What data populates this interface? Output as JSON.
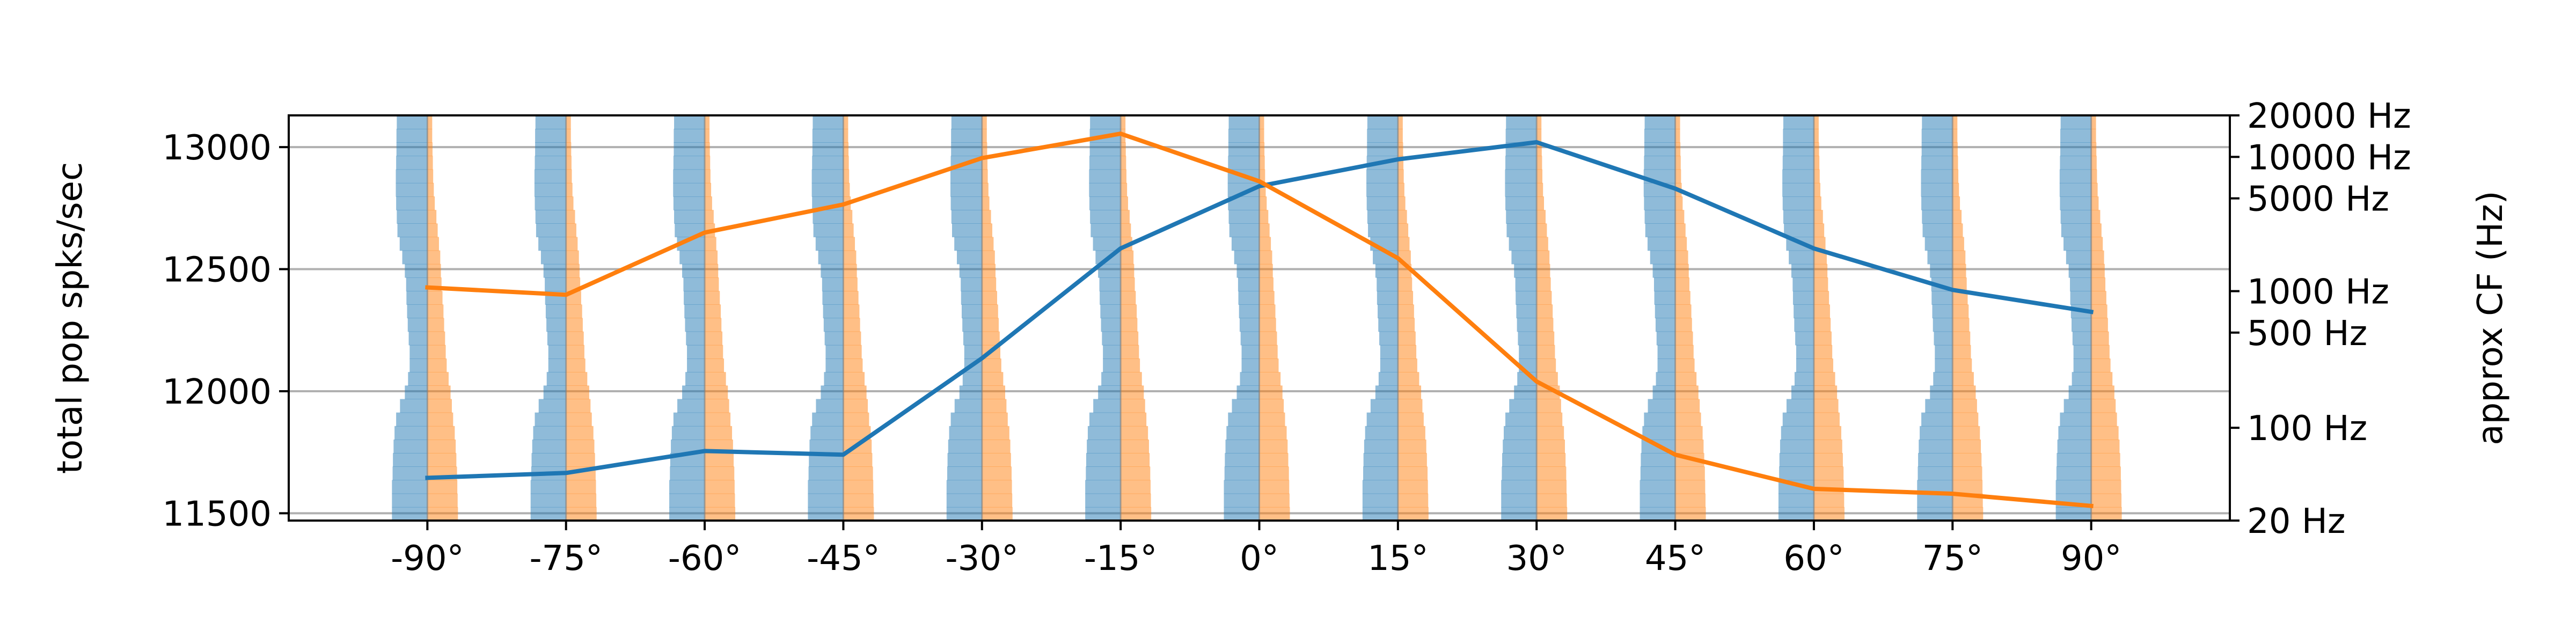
{
  "chart_data": {
    "type": "line",
    "x_categories": [
      "-90°",
      "-75°",
      "-60°",
      "-45°",
      "-30°",
      "-15°",
      "0°",
      "15°",
      "30°",
      "45°",
      "60°",
      "75°",
      "90°"
    ],
    "x_values": [
      -90,
      -75,
      -60,
      -45,
      -30,
      -15,
      0,
      15,
      30,
      45,
      60,
      75,
      90
    ],
    "xlim": [
      -105,
      105
    ],
    "ylabel": "total pop spks/sec",
    "ylim": [
      11470,
      13130
    ],
    "yticks": [
      11500,
      12000,
      12500,
      13000
    ],
    "ytick_labels": [
      "11500",
      "12000",
      "12500",
      "13000"
    ],
    "y2label": "approx CF (Hz)",
    "y2_ticks": [
      {
        "label": "20000 Hz",
        "value": 13130
      },
      {
        "label": "10000 Hz",
        "value": 12960
      },
      {
        "label": "5000 Hz",
        "value": 12790
      },
      {
        "label": "1000 Hz",
        "value": 12410
      },
      {
        "label": "500 Hz",
        "value": 12240
      },
      {
        "label": "100 Hz",
        "value": 11850
      },
      {
        "label": "20 Hz",
        "value": 11470
      }
    ],
    "grid": "horizontal",
    "series": [
      {
        "color": "#1f77b4",
        "values": [
          11645,
          11665,
          11755,
          11740,
          12135,
          12585,
          12840,
          12950,
          13020,
          12830,
          12585,
          12415,
          12325
        ]
      },
      {
        "color": "#ff7f0e",
        "values": [
          12425,
          12395,
          12650,
          12765,
          12955,
          13055,
          12860,
          12545,
          12040,
          11740,
          11600,
          11580,
          11530
        ]
      }
    ],
    "spectra": {
      "description_free": true,
      "left_color": "#1f77b4",
      "right_color": "#ff7f0e",
      "alpha": 0.5,
      "left_profiles": [
        [
          0.95,
          0.96,
          0.96,
          0.97,
          0.98,
          0.98,
          0.97,
          0.95,
          0.93,
          0.86,
          0.78,
          0.7,
          0.66,
          0.65,
          0.63,
          0.61,
          0.58,
          0.55,
          0.55,
          0.6,
          0.7,
          0.85,
          0.97,
          1.02,
          1.05,
          1.07,
          1.08,
          1.1,
          1.1,
          1.1
        ],
        [
          0.95,
          0.96,
          0.96,
          0.97,
          0.98,
          0.98,
          0.97,
          0.95,
          0.93,
          0.86,
          0.78,
          0.7,
          0.66,
          0.65,
          0.63,
          0.61,
          0.58,
          0.55,
          0.55,
          0.6,
          0.7,
          0.85,
          0.97,
          1.02,
          1.05,
          1.07,
          1.08,
          1.1,
          1.1,
          1.1
        ],
        [
          0.95,
          0.96,
          0.96,
          0.97,
          0.98,
          0.98,
          0.97,
          0.95,
          0.93,
          0.86,
          0.78,
          0.7,
          0.66,
          0.65,
          0.63,
          0.61,
          0.58,
          0.55,
          0.55,
          0.6,
          0.7,
          0.85,
          0.97,
          1.02,
          1.05,
          1.07,
          1.08,
          1.1,
          1.1,
          1.1
        ],
        [
          0.95,
          0.96,
          0.96,
          0.97,
          0.98,
          0.98,
          0.97,
          0.95,
          0.93,
          0.86,
          0.78,
          0.7,
          0.66,
          0.65,
          0.63,
          0.61,
          0.58,
          0.55,
          0.55,
          0.6,
          0.7,
          0.85,
          0.97,
          1.02,
          1.05,
          1.07,
          1.08,
          1.1,
          1.1,
          1.1
        ],
        [
          0.95,
          0.96,
          0.96,
          0.97,
          0.98,
          0.98,
          0.97,
          0.95,
          0.93,
          0.86,
          0.78,
          0.7,
          0.66,
          0.65,
          0.63,
          0.61,
          0.58,
          0.55,
          0.55,
          0.6,
          0.7,
          0.85,
          0.97,
          1.02,
          1.05,
          1.07,
          1.08,
          1.1,
          1.1,
          1.1
        ],
        [
          0.95,
          0.96,
          0.96,
          0.97,
          0.98,
          0.98,
          0.97,
          0.95,
          0.93,
          0.86,
          0.78,
          0.7,
          0.66,
          0.65,
          0.63,
          0.61,
          0.58,
          0.55,
          0.55,
          0.6,
          0.7,
          0.85,
          0.97,
          1.02,
          1.05,
          1.07,
          1.08,
          1.1,
          1.1,
          1.1
        ],
        [
          0.95,
          0.96,
          0.96,
          0.97,
          0.98,
          0.98,
          0.97,
          0.95,
          0.93,
          0.86,
          0.78,
          0.7,
          0.66,
          0.65,
          0.63,
          0.61,
          0.58,
          0.55,
          0.55,
          0.6,
          0.7,
          0.85,
          0.97,
          1.02,
          1.05,
          1.07,
          1.08,
          1.1,
          1.1,
          1.1
        ],
        [
          0.95,
          0.96,
          0.96,
          0.97,
          0.98,
          0.98,
          0.97,
          0.95,
          0.93,
          0.86,
          0.78,
          0.7,
          0.66,
          0.65,
          0.63,
          0.61,
          0.58,
          0.55,
          0.55,
          0.6,
          0.7,
          0.85,
          0.97,
          1.02,
          1.05,
          1.07,
          1.08,
          1.1,
          1.1,
          1.1
        ],
        [
          0.95,
          0.96,
          0.96,
          0.97,
          0.98,
          0.98,
          0.97,
          0.95,
          0.93,
          0.86,
          0.78,
          0.7,
          0.66,
          0.65,
          0.63,
          0.61,
          0.58,
          0.55,
          0.55,
          0.6,
          0.7,
          0.85,
          0.97,
          1.02,
          1.05,
          1.07,
          1.08,
          1.1,
          1.1,
          1.1
        ],
        [
          0.95,
          0.96,
          0.96,
          0.97,
          0.98,
          0.98,
          0.97,
          0.95,
          0.93,
          0.86,
          0.78,
          0.7,
          0.66,
          0.65,
          0.63,
          0.61,
          0.58,
          0.55,
          0.55,
          0.6,
          0.7,
          0.85,
          0.97,
          1.02,
          1.05,
          1.07,
          1.08,
          1.1,
          1.1,
          1.1
        ],
        [
          0.95,
          0.96,
          0.96,
          0.97,
          0.98,
          0.98,
          0.97,
          0.95,
          0.93,
          0.86,
          0.78,
          0.7,
          0.66,
          0.65,
          0.63,
          0.61,
          0.58,
          0.55,
          0.55,
          0.6,
          0.7,
          0.85,
          0.97,
          1.02,
          1.05,
          1.07,
          1.08,
          1.1,
          1.1,
          1.1
        ],
        [
          0.95,
          0.96,
          0.96,
          0.97,
          0.98,
          0.98,
          0.97,
          0.95,
          0.93,
          0.86,
          0.78,
          0.7,
          0.66,
          0.65,
          0.63,
          0.61,
          0.58,
          0.55,
          0.55,
          0.6,
          0.7,
          0.85,
          0.97,
          1.02,
          1.05,
          1.07,
          1.08,
          1.1,
          1.1,
          1.1
        ],
        [
          0.95,
          0.96,
          0.96,
          0.97,
          0.98,
          0.98,
          0.97,
          0.95,
          0.93,
          0.86,
          0.78,
          0.7,
          0.66,
          0.65,
          0.63,
          0.61,
          0.58,
          0.55,
          0.55,
          0.6,
          0.7,
          0.85,
          0.97,
          1.02,
          1.05,
          1.07,
          1.08,
          1.1,
          1.1,
          1.1
        ]
      ],
      "right_profiles": [
        [
          0.15,
          0.15,
          0.16,
          0.17,
          0.18,
          0.2,
          0.23,
          0.28,
          0.32,
          0.36,
          0.4,
          0.42,
          0.44,
          0.47,
          0.5,
          0.52,
          0.55,
          0.57,
          0.6,
          0.66,
          0.72,
          0.76,
          0.8,
          0.85,
          0.88,
          0.9,
          0.92,
          0.93,
          0.94,
          0.95
        ],
        [
          0.15,
          0.15,
          0.16,
          0.17,
          0.18,
          0.2,
          0.23,
          0.28,
          0.32,
          0.36,
          0.4,
          0.42,
          0.44,
          0.47,
          0.5,
          0.52,
          0.55,
          0.57,
          0.6,
          0.66,
          0.72,
          0.76,
          0.8,
          0.85,
          0.88,
          0.9,
          0.92,
          0.93,
          0.94,
          0.95
        ],
        [
          0.15,
          0.15,
          0.16,
          0.17,
          0.18,
          0.2,
          0.23,
          0.28,
          0.32,
          0.36,
          0.4,
          0.42,
          0.44,
          0.47,
          0.5,
          0.52,
          0.55,
          0.57,
          0.6,
          0.66,
          0.72,
          0.76,
          0.8,
          0.85,
          0.88,
          0.9,
          0.92,
          0.93,
          0.94,
          0.95
        ],
        [
          0.15,
          0.15,
          0.16,
          0.17,
          0.18,
          0.2,
          0.23,
          0.28,
          0.32,
          0.36,
          0.4,
          0.42,
          0.44,
          0.47,
          0.5,
          0.52,
          0.55,
          0.57,
          0.6,
          0.66,
          0.72,
          0.76,
          0.8,
          0.85,
          0.88,
          0.9,
          0.92,
          0.93,
          0.94,
          0.95
        ],
        [
          0.15,
          0.15,
          0.16,
          0.17,
          0.18,
          0.2,
          0.23,
          0.28,
          0.32,
          0.36,
          0.4,
          0.42,
          0.44,
          0.47,
          0.5,
          0.52,
          0.55,
          0.57,
          0.6,
          0.66,
          0.72,
          0.76,
          0.8,
          0.85,
          0.88,
          0.9,
          0.92,
          0.93,
          0.94,
          0.95
        ],
        [
          0.15,
          0.15,
          0.16,
          0.17,
          0.18,
          0.2,
          0.23,
          0.28,
          0.32,
          0.36,
          0.4,
          0.42,
          0.44,
          0.47,
          0.5,
          0.52,
          0.55,
          0.57,
          0.6,
          0.66,
          0.72,
          0.76,
          0.8,
          0.85,
          0.88,
          0.9,
          0.92,
          0.93,
          0.94,
          0.95
        ],
        [
          0.15,
          0.15,
          0.16,
          0.17,
          0.18,
          0.2,
          0.23,
          0.28,
          0.32,
          0.36,
          0.4,
          0.42,
          0.44,
          0.47,
          0.5,
          0.52,
          0.55,
          0.57,
          0.6,
          0.66,
          0.72,
          0.76,
          0.8,
          0.85,
          0.88,
          0.9,
          0.92,
          0.93,
          0.94,
          0.95
        ],
        [
          0.15,
          0.15,
          0.16,
          0.17,
          0.18,
          0.2,
          0.23,
          0.28,
          0.32,
          0.36,
          0.4,
          0.42,
          0.44,
          0.47,
          0.5,
          0.52,
          0.55,
          0.57,
          0.6,
          0.66,
          0.72,
          0.76,
          0.8,
          0.85,
          0.88,
          0.9,
          0.92,
          0.93,
          0.94,
          0.95
        ],
        [
          0.15,
          0.15,
          0.16,
          0.17,
          0.18,
          0.2,
          0.23,
          0.28,
          0.32,
          0.36,
          0.4,
          0.42,
          0.44,
          0.47,
          0.5,
          0.52,
          0.55,
          0.57,
          0.6,
          0.66,
          0.72,
          0.76,
          0.8,
          0.85,
          0.88,
          0.9,
          0.92,
          0.93,
          0.94,
          0.95
        ],
        [
          0.15,
          0.15,
          0.16,
          0.17,
          0.18,
          0.2,
          0.23,
          0.28,
          0.32,
          0.36,
          0.4,
          0.42,
          0.44,
          0.47,
          0.5,
          0.52,
          0.55,
          0.57,
          0.6,
          0.66,
          0.72,
          0.76,
          0.8,
          0.85,
          0.88,
          0.9,
          0.92,
          0.93,
          0.94,
          0.95
        ],
        [
          0.15,
          0.15,
          0.16,
          0.17,
          0.18,
          0.2,
          0.23,
          0.28,
          0.32,
          0.36,
          0.4,
          0.42,
          0.44,
          0.47,
          0.5,
          0.52,
          0.55,
          0.57,
          0.6,
          0.66,
          0.72,
          0.76,
          0.8,
          0.85,
          0.88,
          0.9,
          0.92,
          0.93,
          0.94,
          0.95
        ],
        [
          0.15,
          0.15,
          0.16,
          0.17,
          0.18,
          0.2,
          0.23,
          0.28,
          0.32,
          0.36,
          0.4,
          0.42,
          0.44,
          0.47,
          0.5,
          0.52,
          0.55,
          0.57,
          0.6,
          0.66,
          0.72,
          0.76,
          0.8,
          0.85,
          0.88,
          0.9,
          0.92,
          0.93,
          0.94,
          0.95
        ],
        [
          0.15,
          0.15,
          0.16,
          0.17,
          0.18,
          0.2,
          0.23,
          0.28,
          0.32,
          0.36,
          0.4,
          0.42,
          0.44,
          0.47,
          0.5,
          0.52,
          0.55,
          0.57,
          0.6,
          0.66,
          0.72,
          0.76,
          0.8,
          0.85,
          0.88,
          0.9,
          0.92,
          0.93,
          0.94,
          0.95
        ]
      ]
    }
  }
}
